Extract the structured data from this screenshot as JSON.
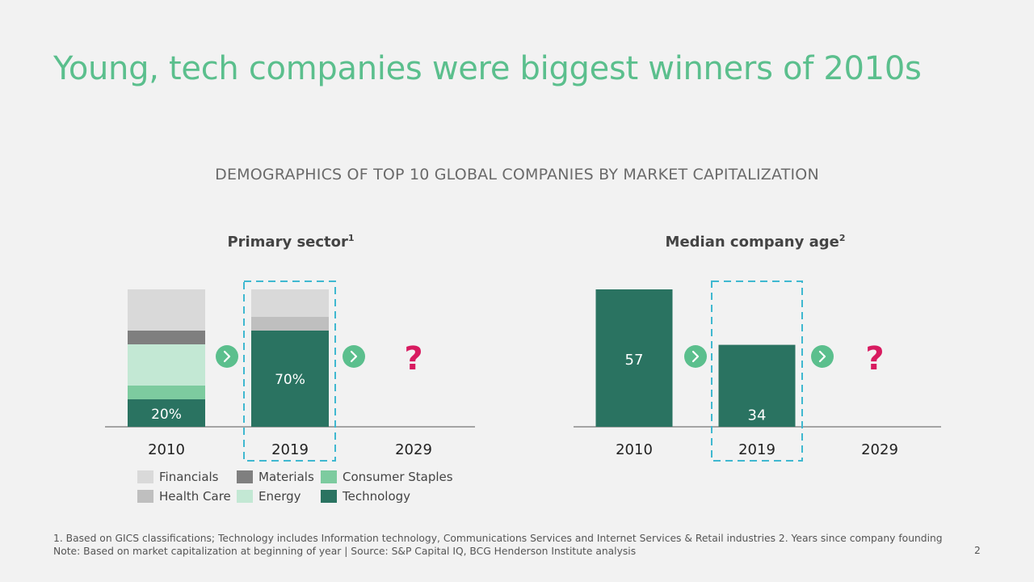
{
  "slide": {
    "title": "Young, tech companies were biggest winners of 2010s",
    "subtitle": "DEMOGRAPHICS OF TOP 10 GLOBAL COMPANIES BY MARKET CAPITALIZATION",
    "footnote_line1": "1. Based on GICS classifications; Technology includes Information technology, Communications Services and Internet Services & Retail industries 2. Years since company founding",
    "footnote_line2": "Note: Based on market capitalization at beginning of year | Source: S&P Capital IQ, BCG Henderson Institute analysis",
    "page_number": "2",
    "unknown_marker": "?"
  },
  "colors": {
    "Financials": "#d9d9d9",
    "Materials": "#7f7f7f",
    "Consumer Staples": "#7dcb9f",
    "Health Care": "#bfbfbf",
    "Energy": "#c3e8d4",
    "Technology": "#2a7361",
    "accent_green": "#5bbf8d",
    "highlight_box": "#3fb8d0",
    "question": "#d81b60"
  },
  "chart_data": [
    {
      "type": "bar",
      "stacked": true,
      "title": "Primary sector",
      "title_superscript": "1",
      "categories": [
        "2010",
        "2019",
        "2029"
      ],
      "series": [
        {
          "name": "Technology",
          "values": [
            20,
            70,
            null
          ]
        },
        {
          "name": "Consumer Staples",
          "values": [
            10,
            0,
            null
          ]
        },
        {
          "name": "Energy",
          "values": [
            30,
            0,
            null
          ]
        },
        {
          "name": "Materials",
          "values": [
            10,
            0,
            null
          ]
        },
        {
          "name": "Health Care",
          "values": [
            0,
            10,
            null
          ]
        },
        {
          "name": "Financials",
          "values": [
            30,
            20,
            null
          ]
        }
      ],
      "data_labels": [
        {
          "category": "2010",
          "series": "Technology",
          "text": "20%"
        },
        {
          "category": "2019",
          "series": "Technology",
          "text": "70%"
        }
      ],
      "unknown_category": "2029",
      "highlight_category": "2019",
      "ylim": [
        0,
        100
      ],
      "legend": {
        "placement": "bottom",
        "rows": [
          [
            "Financials",
            "Materials",
            "Consumer Staples"
          ],
          [
            "Health Care",
            "Energy",
            "Technology"
          ]
        ]
      }
    },
    {
      "type": "bar",
      "title": "Median company age",
      "title_superscript": "2",
      "categories": [
        "2010",
        "2019",
        "2029"
      ],
      "values": [
        57,
        34,
        null
      ],
      "data_labels": [
        "57",
        "34",
        ""
      ],
      "unknown_category": "2029",
      "highlight_category": "2019",
      "ylim": [
        0,
        57
      ]
    }
  ]
}
